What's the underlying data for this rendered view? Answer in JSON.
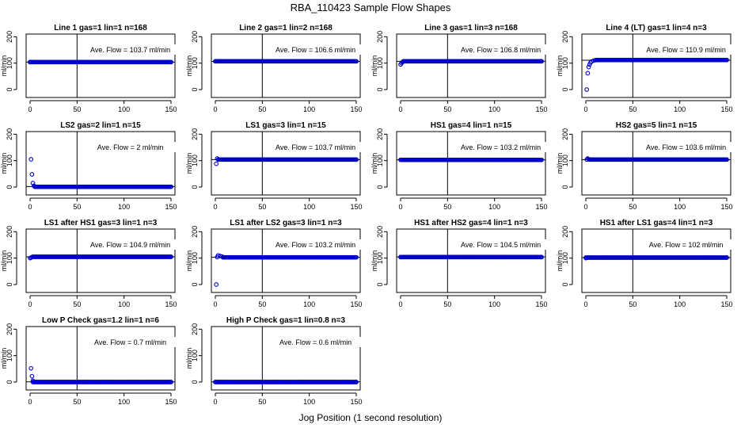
{
  "figure": {
    "title": "RBA_110423  Sample Flow Shapes",
    "xlabel": "Jog Position (1 second resolution)"
  },
  "colors": {
    "points": "#0000cc",
    "axis": "#000000"
  },
  "chart_data": [
    {
      "type": "scatter",
      "title": "Line 1 gas=1 lin=1 n=168",
      "ylabel": "ml/min",
      "annotation": "Ave. Flow = 103.7  ml/min",
      "xlim": [
        0,
        150
      ],
      "ylim": [
        -30,
        210
      ],
      "xticks": [
        0,
        50,
        100,
        150
      ],
      "yticks": [
        0,
        100,
        200
      ],
      "vline_x": 50,
      "hline_y": 103.7,
      "series": [
        {
          "points": [
            [
              0,
              104
            ],
            [
              150,
              104
            ]
          ],
          "start_x": 0,
          "end_x": 150,
          "level": 104
        }
      ]
    },
    {
      "type": "scatter",
      "title": "Line 2 gas=1 lin=2 n=168",
      "ylabel": "ml/min",
      "annotation": "Ave. Flow = 106.6  ml/min",
      "xlim": [
        0,
        150
      ],
      "ylim": [
        -30,
        210
      ],
      "xticks": [
        0,
        50,
        100,
        150
      ],
      "yticks": [
        0,
        100,
        200
      ],
      "vline_x": 50,
      "hline_y": 106.6,
      "series": [
        {
          "points": [
            [
              0,
              107
            ],
            [
              150,
              107
            ]
          ],
          "start_x": 0,
          "end_x": 150,
          "level": 107
        }
      ]
    },
    {
      "type": "scatter",
      "title": "Line 3 gas=1 lin=3 n=168",
      "ylabel": "ml/min",
      "annotation": "Ave. Flow = 106.8  ml/min",
      "xlim": [
        0,
        150
      ],
      "ylim": [
        -30,
        210
      ],
      "xticks": [
        0,
        50,
        100,
        150
      ],
      "yticks": [
        0,
        100,
        200
      ],
      "vline_x": 50,
      "hline_y": 106.8,
      "series": [
        {
          "points": [
            [
              0,
              95
            ],
            [
              1,
              100
            ],
            [
              2,
              104
            ],
            [
              150,
              107
            ]
          ],
          "start_x": 3,
          "end_x": 150,
          "level": 107
        }
      ]
    },
    {
      "type": "scatter",
      "title": "Line 4 (LT) gas=1 lin=4 n=3",
      "ylabel": "ml/min",
      "annotation": "Ave. Flow = 110.9  ml/min",
      "xlim": [
        0,
        150
      ],
      "ylim": [
        -30,
        210
      ],
      "xticks": [
        0,
        50,
        100,
        150
      ],
      "yticks": [
        0,
        100,
        200
      ],
      "vline_x": 50,
      "hline_y": 110.9,
      "series": [
        {
          "points": [
            [
              1,
              0
            ],
            [
              2,
              62
            ],
            [
              3,
              85
            ],
            [
              4,
              95
            ],
            [
              5,
              102
            ],
            [
              6,
              106
            ],
            [
              8,
              109
            ],
            [
              10,
              111
            ],
            [
              150,
              112
            ]
          ],
          "start_x": 11,
          "end_x": 150,
          "level": 112
        }
      ]
    },
    {
      "type": "scatter",
      "title": "LS2 gas=2 lin=1 n=15",
      "ylabel": "ml/min",
      "annotation": "Ave. Flow = 2  ml/min",
      "xlim": [
        0,
        150
      ],
      "ylim": [
        -30,
        210
      ],
      "xticks": [
        0,
        50,
        100,
        150
      ],
      "yticks": [
        0,
        100,
        200
      ],
      "vline_x": 50,
      "hline_y": 2,
      "series": [
        {
          "points": [
            [
              1,
              105
            ],
            [
              2,
              48
            ],
            [
              3,
              15
            ],
            [
              4,
              5
            ],
            [
              150,
              1
            ]
          ],
          "start_x": 5,
          "end_x": 150,
          "level": 1
        }
      ]
    },
    {
      "type": "scatter",
      "title": "LS1 gas=3 lin=1 n=15",
      "ylabel": "ml/min",
      "annotation": "Ave. Flow = 103.7  ml/min",
      "xlim": [
        0,
        150
      ],
      "ylim": [
        -30,
        210
      ],
      "xticks": [
        0,
        50,
        100,
        150
      ],
      "yticks": [
        0,
        100,
        200
      ],
      "vline_x": 50,
      "hline_y": 103.7,
      "series": [
        {
          "points": [
            [
              1,
              88
            ],
            [
              2,
              108
            ],
            [
              3,
              104
            ],
            [
              150,
              104
            ]
          ],
          "start_x": 4,
          "end_x": 150,
          "level": 104
        }
      ]
    },
    {
      "type": "scatter",
      "title": "HS1 gas=4 lin=1 n=15",
      "ylabel": "ml/min",
      "annotation": "Ave. Flow = 103.2  ml/min",
      "xlim": [
        0,
        150
      ],
      "ylim": [
        -30,
        210
      ],
      "xticks": [
        0,
        50,
        100,
        150
      ],
      "yticks": [
        0,
        100,
        200
      ],
      "vline_x": 50,
      "hline_y": 103.2,
      "series": [
        {
          "points": [
            [
              0,
              103
            ],
            [
              150,
              103
            ]
          ],
          "start_x": 0,
          "end_x": 150,
          "level": 103
        }
      ]
    },
    {
      "type": "scatter",
      "title": "HS2 gas=5 lin=1 n=15",
      "ylabel": "ml/min",
      "annotation": "Ave. Flow = 103.6  ml/min",
      "xlim": [
        0,
        150
      ],
      "ylim": [
        -30,
        210
      ],
      "xticks": [
        0,
        50,
        100,
        150
      ],
      "yticks": [
        0,
        100,
        200
      ],
      "vline_x": 50,
      "hline_y": 103.6,
      "series": [
        {
          "points": [
            [
              1,
              104
            ],
            [
              2,
              108
            ],
            [
              3,
              105
            ],
            [
              150,
              104
            ]
          ],
          "start_x": 4,
          "end_x": 150,
          "level": 104
        }
      ]
    },
    {
      "type": "scatter",
      "title": "LS1 after HS1 gas=3 lin=1 n=3",
      "ylabel": "ml/min",
      "annotation": "Ave. Flow = 104.9  ml/min",
      "xlim": [
        0,
        150
      ],
      "ylim": [
        -30,
        210
      ],
      "xticks": [
        0,
        50,
        100,
        150
      ],
      "yticks": [
        0,
        100,
        200
      ],
      "vline_x": 50,
      "hline_y": 104.9,
      "series": [
        {
          "points": [
            [
              0,
              100
            ],
            [
              1,
              102
            ],
            [
              2,
              104
            ],
            [
              150,
              105
            ]
          ],
          "start_x": 3,
          "end_x": 150,
          "level": 105
        }
      ]
    },
    {
      "type": "scatter",
      "title": "LS1 after LS2 gas=3 lin=1 n=3",
      "ylabel": "ml/min",
      "annotation": "Ave. Flow = 103.2  ml/min",
      "xlim": [
        0,
        150
      ],
      "ylim": [
        -30,
        210
      ],
      "xticks": [
        0,
        50,
        100,
        150
      ],
      "yticks": [
        0,
        100,
        200
      ],
      "vline_x": 50,
      "hline_y": 103.2,
      "series": [
        {
          "points": [
            [
              1,
              0
            ],
            [
              2,
              104
            ],
            [
              3,
              110
            ],
            [
              5,
              108
            ],
            [
              7,
              106
            ],
            [
              150,
              103
            ]
          ],
          "start_x": 8,
          "end_x": 150,
          "level": 103
        }
      ]
    },
    {
      "type": "scatter",
      "title": "HS1 after HS2 gas=4 lin=1 n=3",
      "ylabel": "ml/min",
      "annotation": "Ave. Flow = 104.5  ml/min",
      "xlim": [
        0,
        150
      ],
      "ylim": [
        -30,
        210
      ],
      "xticks": [
        0,
        50,
        100,
        150
      ],
      "yticks": [
        0,
        100,
        200
      ],
      "vline_x": 50,
      "hline_y": 104.5,
      "series": [
        {
          "points": [
            [
              0,
              104
            ],
            [
              150,
              104
            ]
          ],
          "start_x": 0,
          "end_x": 150,
          "level": 104
        }
      ]
    },
    {
      "type": "scatter",
      "title": "HS1 after LS1 gas=4 lin=1 n=3",
      "ylabel": "ml/min",
      "annotation": "Ave. Flow = 102  ml/min",
      "xlim": [
        0,
        150
      ],
      "ylim": [
        -30,
        210
      ],
      "xticks": [
        0,
        50,
        100,
        150
      ],
      "yticks": [
        0,
        100,
        200
      ],
      "vline_x": 50,
      "hline_y": 102,
      "series": [
        {
          "points": [
            [
              0,
              100
            ],
            [
              150,
              102
            ]
          ],
          "start_x": 0,
          "end_x": 150,
          "level": 102
        }
      ]
    },
    {
      "type": "scatter",
      "title": "Low P Check gas=1.2 lin=1 n=6",
      "ylabel": "ml/min",
      "annotation": "Ave. Flow = 0.7  ml/min",
      "xlim": [
        0,
        150
      ],
      "ylim": [
        -30,
        210
      ],
      "xticks": [
        0,
        50,
        100,
        150
      ],
      "yticks": [
        0,
        100,
        200
      ],
      "vline_x": 50,
      "hline_y": 0.7,
      "series": [
        {
          "points": [
            [
              1,
              52
            ],
            [
              2,
              22
            ],
            [
              3,
              5
            ],
            [
              150,
              0
            ]
          ],
          "start_x": 3,
          "end_x": 150,
          "level": 0
        }
      ]
    },
    {
      "type": "scatter",
      "title": "High P Check gas=1 lin=0.8 n=3",
      "ylabel": "ml/min",
      "annotation": "Ave. Flow = 0.6  ml/min",
      "xlim": [
        0,
        150
      ],
      "ylim": [
        -30,
        210
      ],
      "xticks": [
        0,
        50,
        100,
        150
      ],
      "yticks": [
        0,
        100,
        200
      ],
      "vline_x": 50,
      "hline_y": 0.6,
      "series": [
        {
          "points": [
            [
              0,
              0
            ],
            [
              150,
              0
            ]
          ],
          "start_x": 0,
          "end_x": 150,
          "level": 0
        }
      ]
    }
  ]
}
